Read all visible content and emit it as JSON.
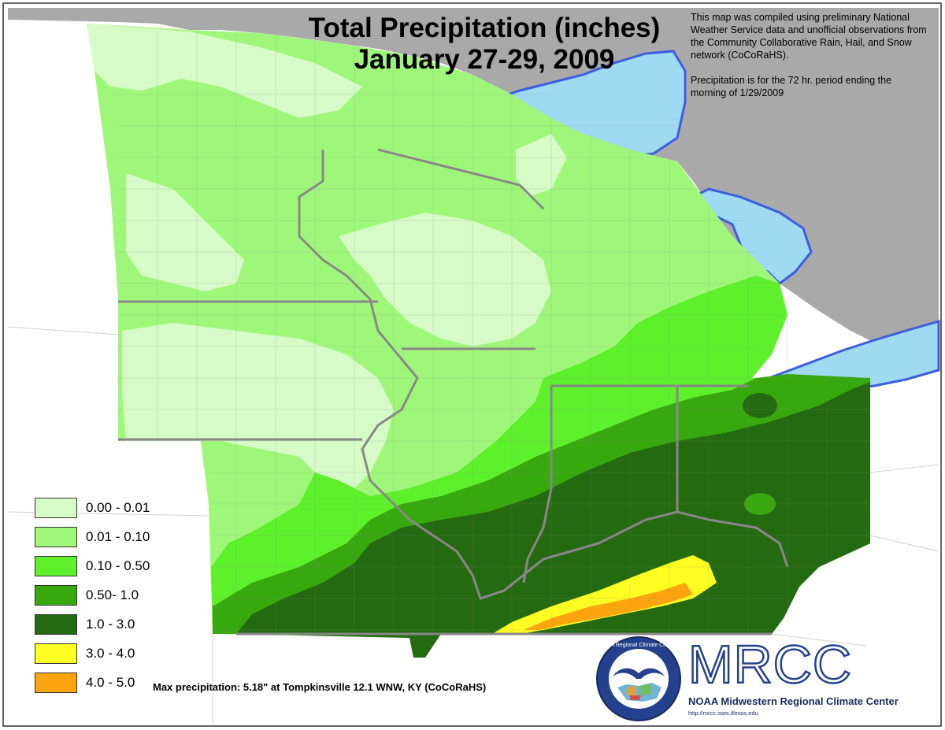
{
  "map": {
    "title_line1": "Total Precipitation (inches)",
    "title_line2": "January 27-29, 2009",
    "note_paragraph1": "This map was compiled using preliminary National Weather Service data and unofficial observations from the Community Collaborative Rain, Hail, and Snow network (CoCoRaHS).",
    "note_paragraph2": "Precipitation is for the 72 hr. period ending the morning of 1/29/2009",
    "max_precipitation": "Max precipitation: 5.18\" at Tompkinsville 12.1 WNW, KY (CoCoRaHS)",
    "colors": {
      "water": "#9fd9f2",
      "land_outside": "#a9a9a9",
      "state_border": "#888888",
      "shoreline": "#3b5ee0"
    }
  },
  "legend": [
    {
      "label": "0.00 - 0.01",
      "color": "#d6fbc6"
    },
    {
      "label": "0.01 - 0.10",
      "color": "#9ff77a"
    },
    {
      "label": "0.10 - 0.50",
      "color": "#5ef02a"
    },
    {
      "label": "0.50- 1.0",
      "color": "#38a80f"
    },
    {
      "label": "1.0 - 3.0",
      "color": "#246a11"
    },
    {
      "label": "3.0 - 4.0",
      "color": "#fefe22"
    },
    {
      "label": "4.0 - 5.0",
      "color": "#fca40e"
    }
  ],
  "logo": {
    "wordmark": "MRCC",
    "name": "NOAA Midwestern Regional Climate Center",
    "url": "http://mrcc.isws.illinois.edu",
    "seal_text": "NOAA Regional Climate Centers"
  }
}
